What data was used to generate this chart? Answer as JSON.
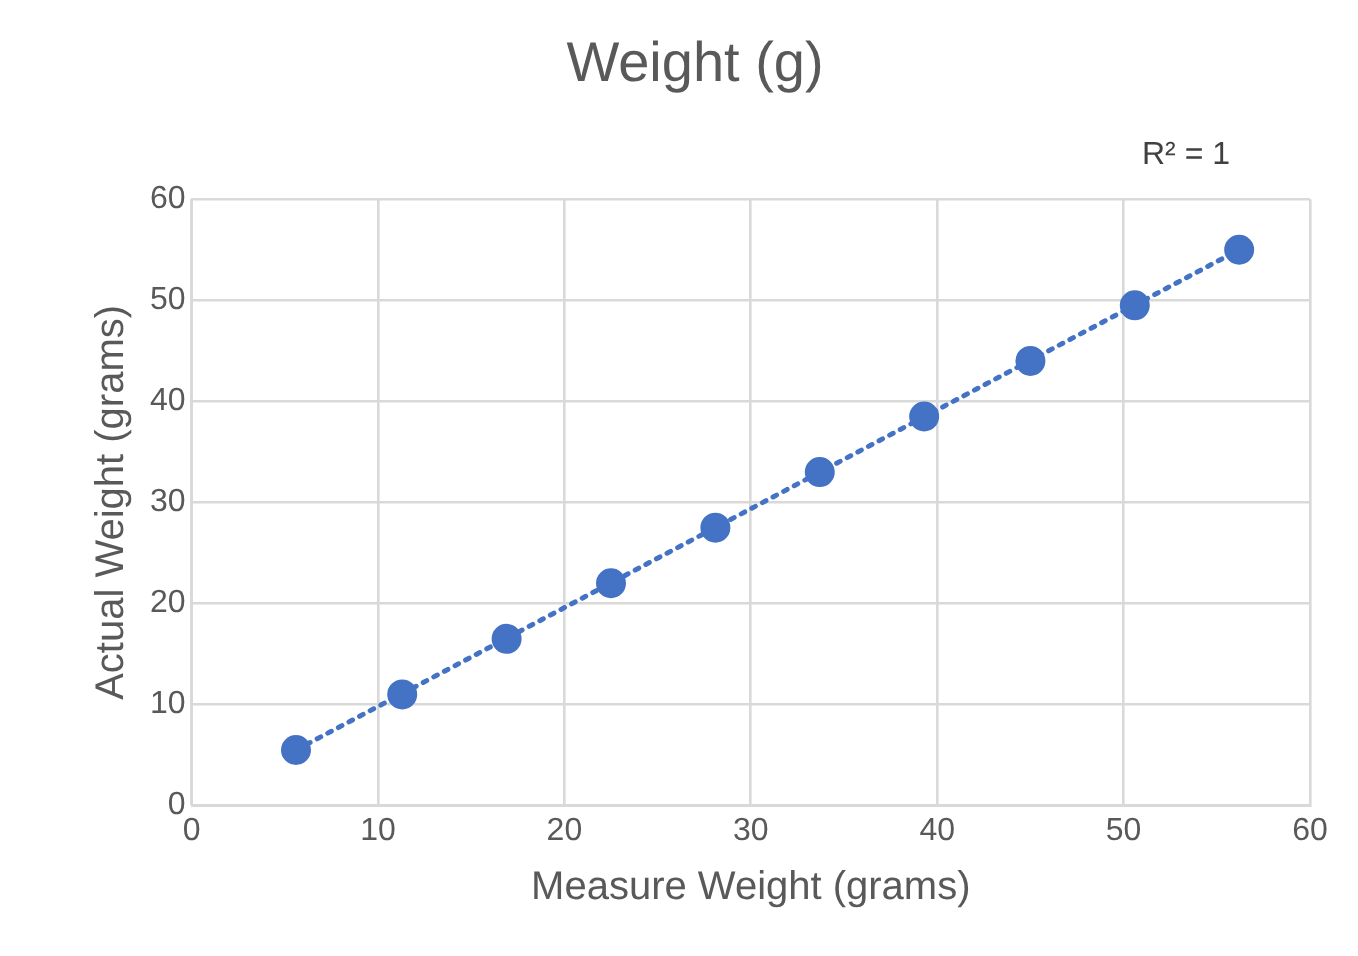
{
  "chart_data": {
    "type": "scatter",
    "title": "Weight (g)",
    "xlabel": "Measure Weight (grams)",
    "ylabel": "Actual Weight (grams)",
    "series": [
      {
        "type": "scatter",
        "color": "#4472c4",
        "x": [
          5.6,
          11.3,
          16.9,
          22.5,
          28.1,
          33.7,
          39.3,
          45,
          50.6,
          56.2
        ],
        "values": [
          5.5,
          11,
          16.5,
          22,
          27.5,
          33,
          38.5,
          44,
          49.5,
          55
        ],
        "marker": "circle"
      },
      {
        "type": "line",
        "color": "#4472c4",
        "x": [
          5.6,
          56.2
        ],
        "values": [
          5.5,
          55
        ],
        "line_style": "dotted",
        "marker": "none"
      }
    ],
    "annotations": [
      "R² = 1"
    ],
    "xlim": [
      0,
      60
    ],
    "xticks": [
      0,
      10,
      20,
      30,
      40,
      50,
      60
    ],
    "ylim": [
      0,
      60
    ],
    "yticks": [
      0,
      10,
      20,
      30,
      40,
      50,
      60
    ],
    "grid": true,
    "legend": false
  }
}
